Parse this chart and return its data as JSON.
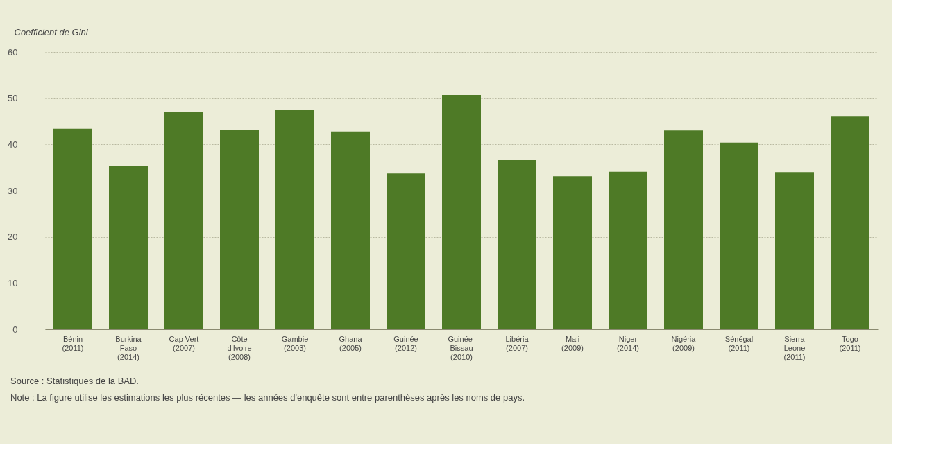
{
  "chart_data": {
    "type": "bar",
    "ylabel": "Coefficient de Gini",
    "categories": [
      "Bénin\n(2011)",
      "Burkina\nFaso\n(2014)",
      "Cap Vert\n(2007)",
      "Côte\nd'Ivoire\n(2008)",
      "Gambie\n(2003)",
      "Ghana\n(2005)",
      "Guinée\n(2012)",
      "Guinée-\nBissau\n(2010)",
      "Libéria\n(2007)",
      "Mali\n(2009)",
      "Niger\n(2014)",
      "Nigéria\n(2009)",
      "Sénégal\n(2011)",
      "Sierra\nLeone\n(2011)",
      "Togo\n(2011)"
    ],
    "values": [
      43.4,
      35.3,
      47.1,
      43.2,
      47.4,
      42.8,
      33.7,
      50.7,
      36.6,
      33.1,
      34.1,
      43.0,
      40.4,
      34.0,
      46.0
    ],
    "color": "#4e7a26",
    "ylim": [
      0,
      60
    ],
    "yticks": [
      0,
      10,
      20,
      30,
      40,
      50,
      60
    ],
    "grid": "y",
    "annotations": [
      "Source : Statistiques de la BAD.",
      "Note : La figure utilise les estimations les plus récentes — les années d'enquête sont entre parenthèses après les noms de pays."
    ]
  }
}
